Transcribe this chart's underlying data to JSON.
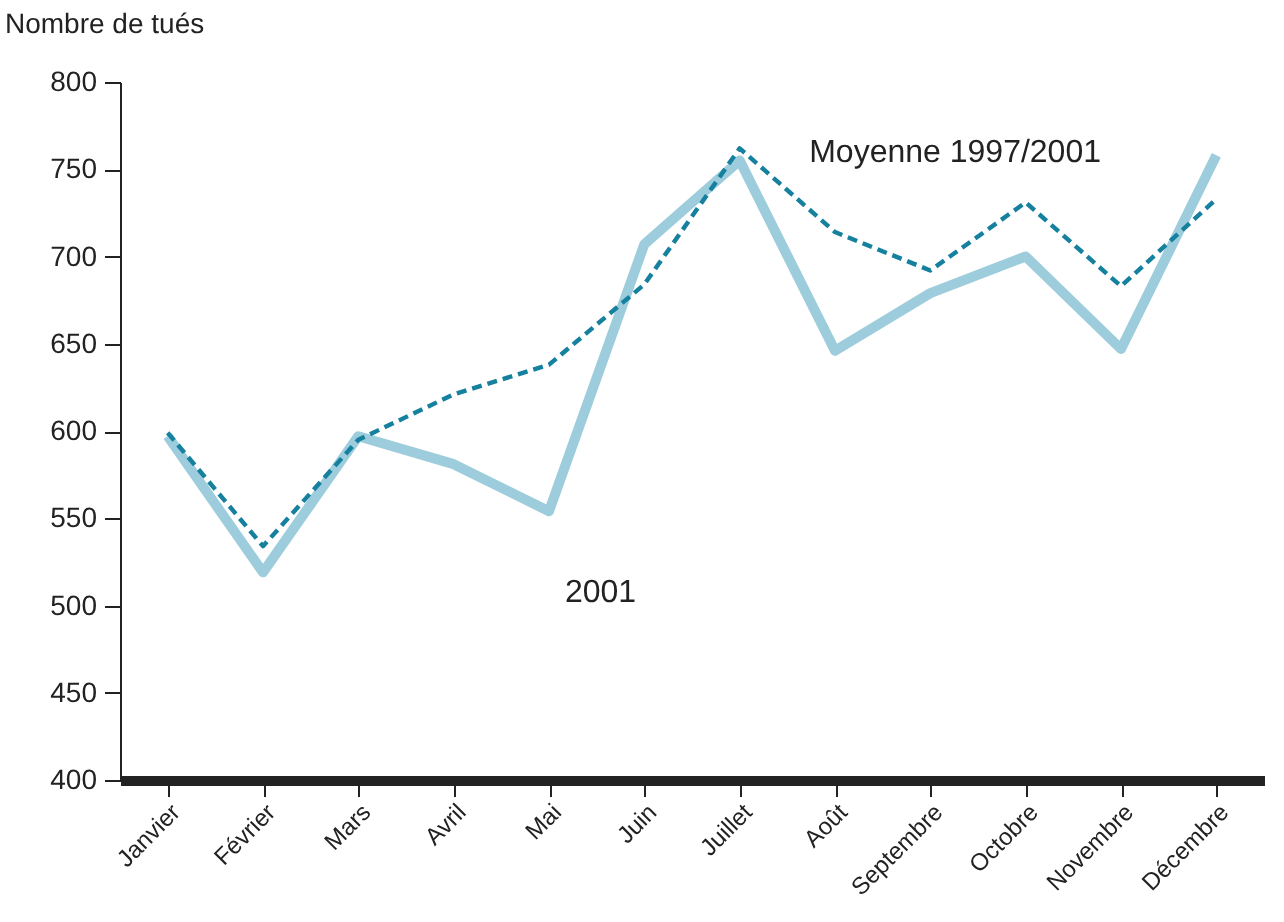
{
  "chart_data": {
    "type": "line",
    "ylabel": "Nombre de tués",
    "categories": [
      "Janvier",
      "Février",
      "Mars",
      "Avril",
      "Mai",
      "Juin",
      "Juillet",
      "Août",
      "Septembre",
      "Octobre",
      "Novembre",
      "Décembre"
    ],
    "series": [
      {
        "name": "2001",
        "color": "#9dcddc",
        "line_style": "solid",
        "values": [
          597,
          519,
          597,
          581,
          554,
          707,
          755,
          646,
          679,
          700,
          647,
          758
        ]
      },
      {
        "name": "Moyenne 1997/2001",
        "color": "#16809f",
        "line_style": "dashed",
        "values": [
          599,
          534,
          595,
          621,
          638,
          684,
          762,
          714,
          692,
          731,
          683,
          733
        ]
      }
    ],
    "ylim": [
      400,
      800
    ],
    "yticks": [
      400,
      450,
      500,
      550,
      600,
      650,
      700,
      750,
      800
    ],
    "grid": false
  }
}
